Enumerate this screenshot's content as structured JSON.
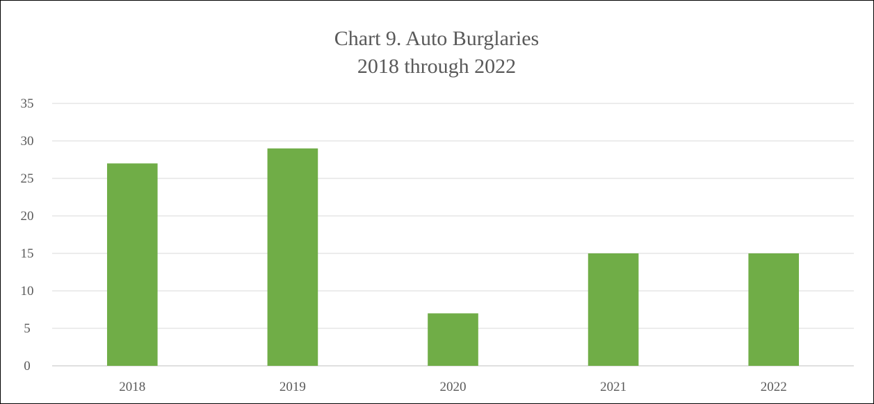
{
  "chart_data": {
    "type": "bar",
    "title": "Chart 9. Auto Burglaries",
    "subtitle": "2018 through 2022",
    "categories": [
      "2018",
      "2019",
      "2020",
      "2021",
      "2022"
    ],
    "values": [
      27,
      29,
      7,
      15,
      15
    ],
    "xlabel": "",
    "ylabel": "",
    "ylim": [
      0,
      35
    ],
    "yticks": [
      "0",
      "5",
      "10",
      "15",
      "20",
      "25",
      "30",
      "35"
    ],
    "grid": true,
    "legend": "none",
    "colors": {
      "bar": "#70ad47",
      "text": "#595959",
      "grid": "#d9d9d9"
    }
  }
}
